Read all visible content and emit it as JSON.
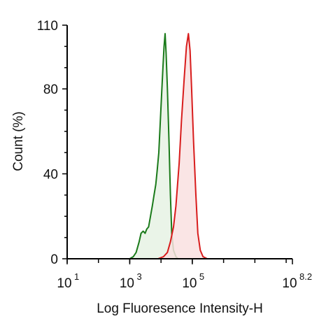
{
  "chart_data": {
    "type": "area",
    "xlabel": "Log Fluoresence Intensity-H",
    "ylabel": "Count  (%)",
    "x_scale": "log10",
    "xlim": [
      10,
      158489319
    ],
    "ylim": [
      0,
      110
    ],
    "y_ticks": [
      0,
      40,
      80,
      110
    ],
    "x_ticks": [
      {
        "base": "10",
        "exp": "1",
        "value": 10
      },
      {
        "base": "10",
        "exp": "3",
        "value": 1000
      },
      {
        "base": "10",
        "exp": "5",
        "value": 100000
      },
      {
        "base": "10",
        "exp": "8.2",
        "value": 158489319
      }
    ],
    "grid": false,
    "series": [
      {
        "color": "#1a7a1a",
        "fill": "#e6f2e4",
        "points": [
          [
            1000,
            0
          ],
          [
            1300,
            1
          ],
          [
            1600,
            3
          ],
          [
            2000,
            8
          ],
          [
            2300,
            12
          ],
          [
            2700,
            13
          ],
          [
            3100,
            12
          ],
          [
            3500,
            14
          ],
          [
            4000,
            15
          ],
          [
            4600,
            20
          ],
          [
            5300,
            25
          ],
          [
            6000,
            30
          ],
          [
            6800,
            35
          ],
          [
            7600,
            42
          ],
          [
            8500,
            50
          ],
          [
            9500,
            65
          ],
          [
            10500,
            78
          ],
          [
            11500,
            90
          ],
          [
            12500,
            100
          ],
          [
            13500,
            106
          ],
          [
            14500,
            97
          ],
          [
            16000,
            80
          ],
          [
            18000,
            55
          ],
          [
            20000,
            30
          ],
          [
            22000,
            12
          ],
          [
            25000,
            4
          ],
          [
            30000,
            1
          ],
          [
            35000,
            0
          ]
        ]
      },
      {
        "color": "#d81c1c",
        "fill": "#f9e0e0",
        "points": [
          [
            8000,
            0
          ],
          [
            12000,
            1
          ],
          [
            16000,
            3
          ],
          [
            20000,
            8
          ],
          [
            25000,
            15
          ],
          [
            30000,
            25
          ],
          [
            38000,
            45
          ],
          [
            45000,
            65
          ],
          [
            55000,
            85
          ],
          [
            65000,
            100
          ],
          [
            75000,
            106
          ],
          [
            85000,
            98
          ],
          [
            95000,
            80
          ],
          [
            110000,
            55
          ],
          [
            130000,
            30
          ],
          [
            150000,
            12
          ],
          [
            180000,
            4
          ],
          [
            220000,
            1
          ],
          [
            300000,
            0
          ]
        ]
      }
    ]
  }
}
